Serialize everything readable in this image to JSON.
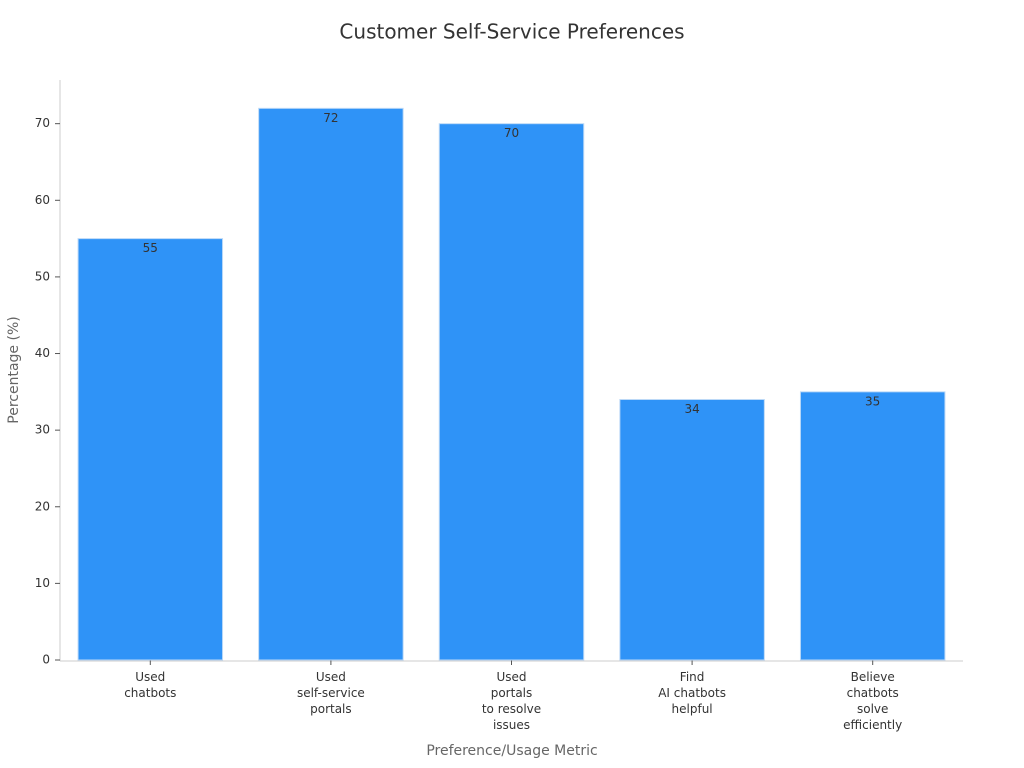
{
  "chart_data": {
    "type": "bar",
    "title": "Customer Self-Service Preferences",
    "x_label": "Preference/Usage Metric",
    "y_label": "Percentage (%)",
    "categories": [
      "Used\nchatbots",
      "Used\nself-service\nportals",
      "Used\nportals\nto resolve\nissues",
      "Find\nAI chatbots\nhelpful",
      "Believe\nchatbots\nsolve\nefficiently"
    ],
    "values": [
      55,
      72,
      70,
      34,
      35
    ],
    "color": "#2f93f7",
    "ylim": [
      0,
      75.7
    ],
    "yticks": [
      0,
      10,
      20,
      30,
      40,
      50,
      60,
      70
    ],
    "grid": false
  }
}
